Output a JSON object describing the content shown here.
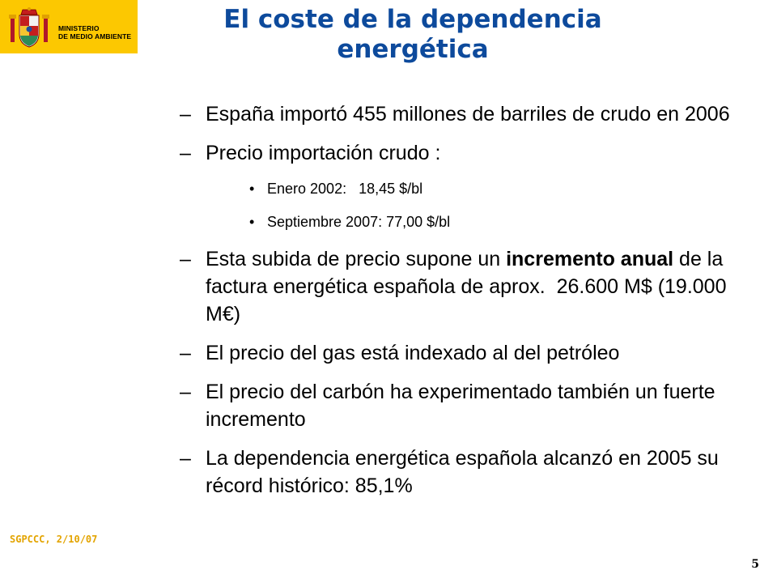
{
  "header": {
    "ministry_line1": "MINISTERIO",
    "ministry_line2": "DE MEDIO AMBIENTE",
    "title_line1": "El coste de la dependencia",
    "title_line2": "energética"
  },
  "bullets": {
    "b1_dash": "–",
    "b1": "España importó 455 millones de barriles de crudo en 2006",
    "b2_dash": "–",
    "b2": "Precio importación crudo :",
    "sub1_dot": "•",
    "sub1": "Enero 2002:   18,45 $/bl",
    "sub2_dot": "•",
    "sub2": "Septiembre 2007: 77,00 $/bl",
    "b3_dash": "–",
    "b3_pre": "Esta subida de precio supone un ",
    "b3_bold": "incremento anual",
    "b3_post": " de la factura energética española de aprox.  26.600 M$ (19.000 M€)",
    "b4_dash": "–",
    "b4": "El precio del gas está indexado al del petróleo",
    "b5_dash": "–",
    "b5": "El precio del carbón ha experimentado también un fuerte incremento",
    "b6_dash": "–",
    "b6": "La dependencia energética española alcanzó en 2005 su récord histórico: 85,1%"
  },
  "footer": {
    "text": "SGPCCC, 2/10/07",
    "page_number": "5"
  },
  "colors": {
    "title": "#0d4a9c",
    "logo_bg": "#fcc801",
    "footer": "#e3a400"
  }
}
